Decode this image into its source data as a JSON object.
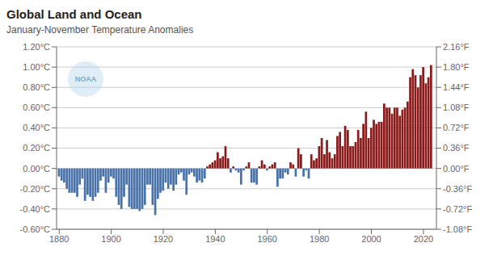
{
  "chart_data": {
    "type": "bar",
    "title": "Global Land and Ocean",
    "subtitle": "January-November Temperature Anomalies",
    "annotations": [
      "NOAA"
    ],
    "x": [
      1880,
      1881,
      1882,
      1883,
      1884,
      1885,
      1886,
      1887,
      1888,
      1889,
      1890,
      1891,
      1892,
      1893,
      1894,
      1895,
      1896,
      1897,
      1898,
      1899,
      1900,
      1901,
      1902,
      1903,
      1904,
      1905,
      1906,
      1907,
      1908,
      1909,
      1910,
      1911,
      1912,
      1913,
      1914,
      1915,
      1916,
      1917,
      1918,
      1919,
      1920,
      1921,
      1922,
      1923,
      1924,
      1925,
      1926,
      1927,
      1928,
      1929,
      1930,
      1931,
      1932,
      1933,
      1934,
      1935,
      1936,
      1937,
      1938,
      1939,
      1940,
      1941,
      1942,
      1943,
      1944,
      1945,
      1946,
      1947,
      1948,
      1949,
      1950,
      1951,
      1952,
      1953,
      1954,
      1955,
      1956,
      1957,
      1958,
      1959,
      1960,
      1961,
      1962,
      1963,
      1964,
      1965,
      1966,
      1967,
      1968,
      1969,
      1970,
      1971,
      1972,
      1973,
      1974,
      1975,
      1976,
      1977,
      1978,
      1979,
      1980,
      1981,
      1982,
      1983,
      1984,
      1985,
      1986,
      1987,
      1988,
      1989,
      1990,
      1991,
      1992,
      1993,
      1994,
      1995,
      1996,
      1997,
      1998,
      1999,
      2000,
      2001,
      2002,
      2003,
      2004,
      2005,
      2006,
      2007,
      2008,
      2009,
      2010,
      2011,
      2012,
      2013,
      2014,
      2015,
      2016,
      2017,
      2018,
      2019,
      2020,
      2021,
      2022,
      2023
    ],
    "values": [
      -0.08,
      -0.12,
      -0.14,
      -0.2,
      -0.24,
      -0.24,
      -0.24,
      -0.28,
      -0.16,
      -0.1,
      -0.32,
      -0.26,
      -0.28,
      -0.32,
      -0.28,
      -0.24,
      -0.12,
      -0.08,
      -0.24,
      -0.14,
      -0.08,
      -0.1,
      -0.28,
      -0.36,
      -0.4,
      -0.28,
      -0.16,
      -0.38,
      -0.4,
      -0.4,
      -0.4,
      -0.42,
      -0.4,
      -0.36,
      -0.16,
      -0.16,
      -0.36,
      -0.46,
      -0.3,
      -0.24,
      -0.22,
      -0.14,
      -0.2,
      -0.16,
      -0.22,
      -0.16,
      -0.06,
      -0.04,
      -0.12,
      -0.26,
      -0.06,
      -0.04,
      -0.08,
      -0.14,
      -0.12,
      -0.14,
      -0.1,
      0.02,
      0.04,
      0.06,
      0.08,
      0.16,
      0.1,
      0.12,
      0.22,
      0.1,
      -0.04,
      0.02,
      -0.02,
      -0.04,
      -0.16,
      -0.02,
      0.02,
      0.06,
      -0.14,
      -0.14,
      -0.16,
      0.02,
      0.08,
      0.04,
      -0.02,
      0.02,
      0.04,
      0.06,
      -0.18,
      -0.1,
      -0.1,
      -0.04,
      -0.06,
      0.06,
      0.04,
      -0.08,
      0.2,
      0.14,
      -0.08,
      -0.02,
      -0.1,
      0.14,
      0.08,
      0.1,
      0.22,
      0.3,
      0.14,
      0.28,
      0.16,
      0.1,
      0.14,
      0.32,
      0.36,
      0.22,
      0.42,
      0.38,
      0.22,
      0.22,
      0.26,
      0.38,
      0.3,
      0.44,
      0.56,
      0.3,
      0.4,
      0.48,
      0.44,
      0.46,
      0.46,
      0.64,
      0.6,
      0.6,
      0.54,
      0.6,
      0.6,
      0.52,
      0.58,
      0.6,
      0.66,
      0.9,
      0.98,
      0.92,
      0.8,
      0.92,
      1.0,
      0.84,
      0.9,
      1.02
    ],
    "colors": [
      "#4872A8",
      "#4872A8",
      "#4872A8",
      "#4872A8",
      "#4872A8",
      "#4872A8",
      "#4872A8",
      "#4872A8",
      "#4872A8",
      "#4872A8",
      "#4872A8",
      "#4872A8",
      "#4872A8",
      "#4872A8",
      "#4872A8",
      "#4872A8",
      "#4872A8",
      "#4872A8",
      "#4872A8",
      "#4872A8",
      "#4872A8",
      "#4872A8",
      "#4872A8",
      "#4872A8",
      "#4872A8",
      "#4872A8",
      "#4872A8",
      "#4872A8",
      "#4872A8",
      "#4872A8",
      "#4872A8",
      "#4872A8",
      "#4872A8",
      "#4872A8",
      "#4872A8",
      "#4872A8",
      "#4872A8",
      "#4872A8",
      "#4872A8",
      "#4872A8",
      "#4872A8",
      "#4872A8",
      "#4872A8",
      "#4872A8",
      "#4872A8",
      "#4872A8",
      "#4872A8",
      "#4872A8",
      "#4872A8",
      "#4872A8",
      "#4872A8",
      "#4872A8",
      "#4872A8",
      "#4872A8",
      "#4872A8",
      "#4872A8",
      "#4872A8",
      "#8B1A1A",
      "#8B1A1A",
      "#8B1A1A",
      "#8B1A1A",
      "#8B1A1A",
      "#8B1A1A",
      "#8B1A1A",
      "#8B1A1A",
      "#8B1A1A",
      "#4872A8",
      "#8B1A1A",
      "#4872A8",
      "#4872A8",
      "#4872A8",
      "#4872A8",
      "#8B1A1A",
      "#8B1A1A",
      "#4872A8",
      "#4872A8",
      "#4872A8",
      "#8B1A1A",
      "#8B1A1A",
      "#8B1A1A",
      "#4872A8",
      "#8B1A1A",
      "#8B1A1A",
      "#8B1A1A",
      "#4872A8",
      "#4872A8",
      "#4872A8",
      "#4872A8",
      "#4872A8",
      "#8B1A1A",
      "#8B1A1A",
      "#4872A8",
      "#8B1A1A",
      "#8B1A1A",
      "#4872A8",
      "#4872A8",
      "#4872A8",
      "#8B1A1A",
      "#8B1A1A",
      "#8B1A1A",
      "#8B1A1A",
      "#8B1A1A",
      "#8B1A1A",
      "#8B1A1A",
      "#8B1A1A",
      "#8B1A1A",
      "#8B1A1A",
      "#8B1A1A",
      "#8B1A1A",
      "#8B1A1A",
      "#8B1A1A",
      "#8B1A1A",
      "#8B1A1A",
      "#8B1A1A",
      "#8B1A1A",
      "#8B1A1A",
      "#8B1A1A",
      "#8B1A1A",
      "#8B1A1A",
      "#8B1A1A",
      "#8B1A1A",
      "#8B1A1A",
      "#8B1A1A",
      "#8B1A1A",
      "#8B1A1A",
      "#8B1A1A",
      "#8B1A1A",
      "#8B1A1A",
      "#8B1A1A",
      "#8B1A1A",
      "#8B1A1A",
      "#8B1A1A",
      "#8B1A1A",
      "#8B1A1A",
      "#8B1A1A",
      "#8B1A1A",
      "#8B1A1A",
      "#8B1A1A",
      "#8B1A1A",
      "#8B1A1A",
      "#8B1A1A",
      "#8B1A1A",
      "#8B1A1A",
      "#8B1A1A"
    ],
    "xlim": [
      1879,
      2025
    ],
    "xticks": [
      1880,
      1900,
      1920,
      1940,
      1960,
      1980,
      2000,
      2020
    ],
    "ylim": [
      -0.6,
      1.2
    ],
    "yticks": [
      {
        "value": -0.6,
        "label": "-0.60°C"
      },
      {
        "value": -0.4,
        "label": "-0.40°C"
      },
      {
        "value": -0.2,
        "label": "-0.20°C"
      },
      {
        "value": 0.0,
        "label": "0.00°C"
      },
      {
        "value": 0.2,
        "label": "0.20°C"
      },
      {
        "value": 0.4,
        "label": "0.40°C"
      },
      {
        "value": 0.6,
        "label": "0.60°C"
      },
      {
        "value": 0.8,
        "label": "0.80°C"
      },
      {
        "value": 1.0,
        "label": "1.00°C"
      },
      {
        "value": 1.2,
        "label": "1.20°C"
      }
    ],
    "y2lim": [
      -0.6,
      1.2
    ],
    "y2ticks": [
      {
        "value": -0.6,
        "label": "-1.08°F"
      },
      {
        "value": -0.4,
        "label": "-0.72°F"
      },
      {
        "value": -0.2,
        "label": "-0.36°F"
      },
      {
        "value": 0.0,
        "label": "0.00°F"
      },
      {
        "value": 0.2,
        "label": "0.36°F"
      },
      {
        "value": 0.4,
        "label": "0.72°F"
      },
      {
        "value": 0.6,
        "label": "1.08°F"
      },
      {
        "value": 0.8,
        "label": "1.44°F"
      },
      {
        "value": 1.0,
        "label": "1.80°F"
      },
      {
        "value": 1.2,
        "label": "2.16°F"
      }
    ],
    "grid": true
  }
}
